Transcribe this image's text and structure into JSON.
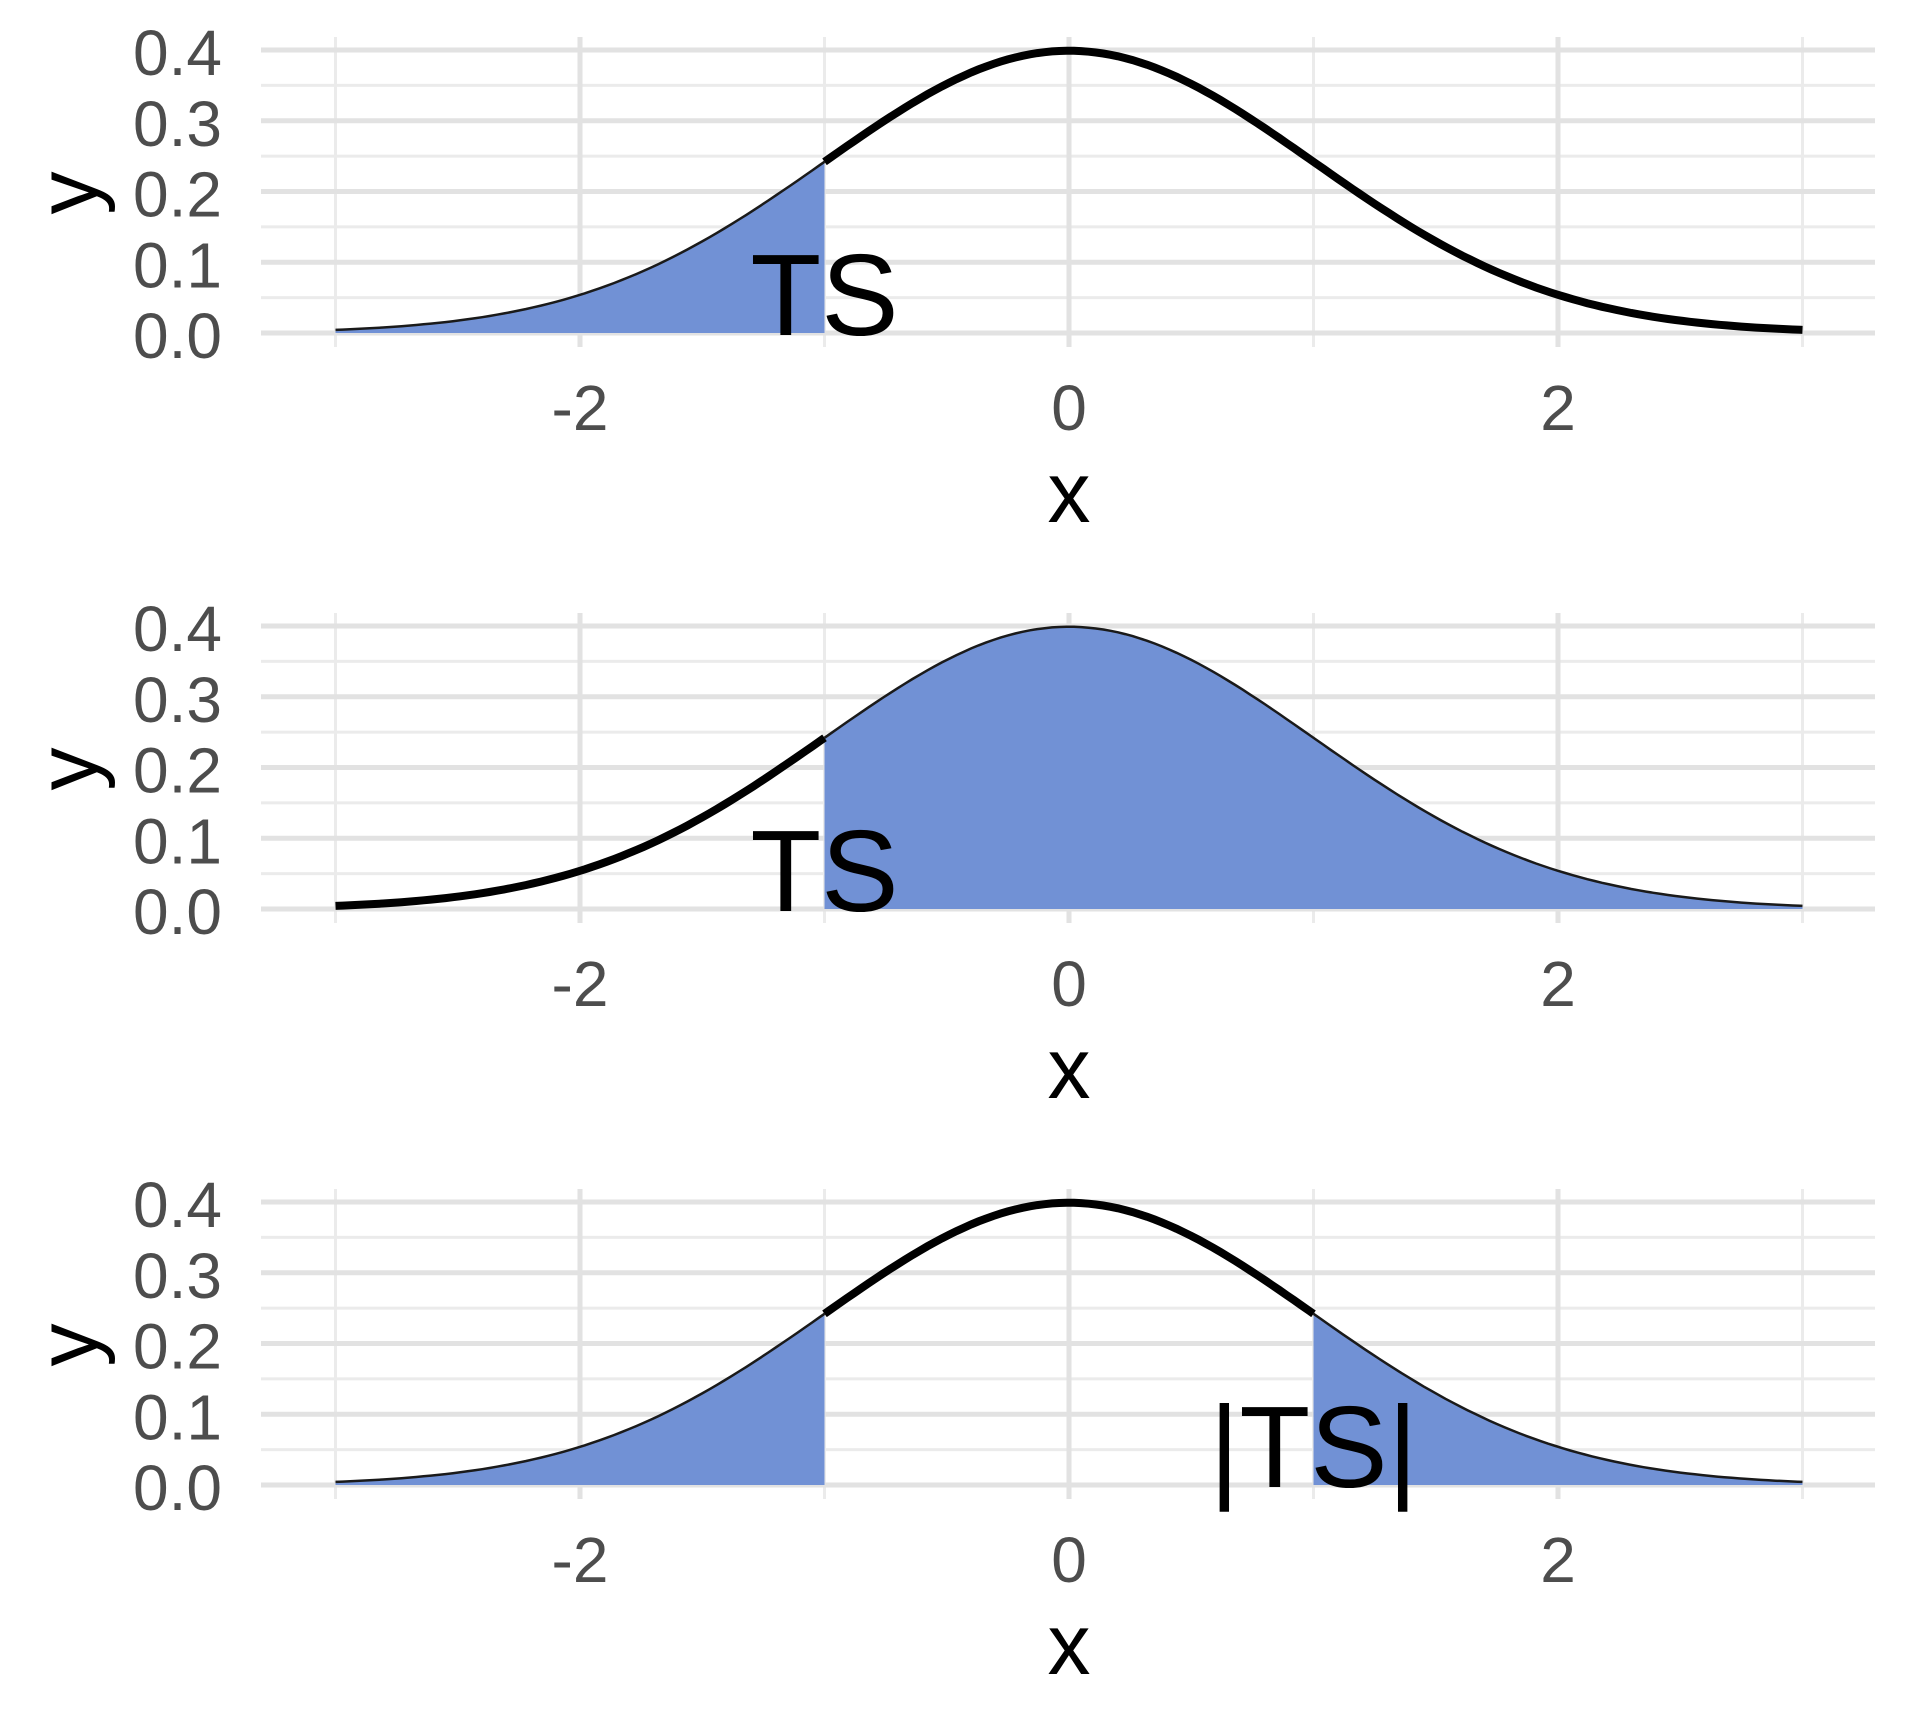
{
  "colors": {
    "background": "#FFFFFF",
    "fill_blue": "#7191D5",
    "curve_black": "#000000",
    "fill_edge": "#1A1A1A",
    "grid_major": "#E2E2E2",
    "grid_minor": "#EBEBEB",
    "tick_text": "#4D4D4D",
    "title_text": "#000000",
    "annotation_text": "#000000"
  },
  "chart_data": [
    {
      "type": "area",
      "panel": "top",
      "title": "",
      "xlabel": "x",
      "ylabel": "y",
      "xlim": [
        -3.3,
        3.3
      ],
      "ylim": [
        -0.02,
        0.42
      ],
      "grid": true,
      "legend": "none",
      "x_tick_values": [
        -2,
        0,
        2
      ],
      "x_tick_labels": [
        "-2",
        "0",
        "2"
      ],
      "y_tick_values": [
        0,
        0.1,
        0.2,
        0.3,
        0.4
      ],
      "y_tick_labels": [
        "0.0",
        "0.1",
        "0.2",
        "0.3",
        "0.4"
      ],
      "x_minor_values": [
        -3,
        -1,
        1,
        3
      ],
      "y_minor_values": [
        0.05,
        0.15,
        0.25,
        0.35
      ],
      "curve": {
        "name": "standard-normal-pdf",
        "mean": 0,
        "sd": 1,
        "x_range": [
          -3,
          3
        ],
        "peak": 0.3989,
        "key_points": [
          [
            -3,
            0.0044
          ],
          [
            -2,
            0.054
          ],
          [
            -1,
            0.242
          ],
          [
            0,
            0.3989
          ],
          [
            1,
            0.242
          ],
          [
            2,
            0.054
          ],
          [
            3,
            0.0044
          ]
        ]
      },
      "shaded_regions": [
        [
          -3,
          -1
        ]
      ],
      "line_segments": [
        [
          -1,
          3
        ]
      ],
      "annotations": [
        {
          "label": "TS",
          "x": -1,
          "y": 0.05
        }
      ]
    },
    {
      "type": "area",
      "panel": "middle",
      "title": "",
      "xlabel": "x",
      "ylabel": "y",
      "xlim": [
        -3.3,
        3.3
      ],
      "ylim": [
        -0.02,
        0.42
      ],
      "grid": true,
      "legend": "none",
      "x_tick_values": [
        -2,
        0,
        2
      ],
      "x_tick_labels": [
        "-2",
        "0",
        "2"
      ],
      "y_tick_values": [
        0,
        0.1,
        0.2,
        0.3,
        0.4
      ],
      "y_tick_labels": [
        "0.0",
        "0.1",
        "0.2",
        "0.3",
        "0.4"
      ],
      "x_minor_values": [
        -3,
        -1,
        1,
        3
      ],
      "y_minor_values": [
        0.05,
        0.15,
        0.25,
        0.35
      ],
      "curve": {
        "name": "standard-normal-pdf",
        "mean": 0,
        "sd": 1,
        "x_range": [
          -3,
          3
        ],
        "peak": 0.3989,
        "key_points": [
          [
            -3,
            0.0044
          ],
          [
            -2,
            0.054
          ],
          [
            -1,
            0.242
          ],
          [
            0,
            0.3989
          ],
          [
            1,
            0.242
          ],
          [
            2,
            0.054
          ],
          [
            3,
            0.0044
          ]
        ]
      },
      "shaded_regions": [
        [
          -1,
          3
        ]
      ],
      "line_segments": [
        [
          -3,
          -1
        ]
      ],
      "annotations": [
        {
          "label": "TS",
          "x": -1,
          "y": 0.05
        }
      ]
    },
    {
      "type": "area",
      "panel": "bottom",
      "title": "",
      "xlabel": "x",
      "ylabel": "y",
      "xlim": [
        -3.3,
        3.3
      ],
      "ylim": [
        -0.02,
        0.42
      ],
      "grid": true,
      "legend": "none",
      "x_tick_values": [
        -2,
        0,
        2
      ],
      "x_tick_labels": [
        "-2",
        "0",
        "2"
      ],
      "y_tick_values": [
        0,
        0.1,
        0.2,
        0.3,
        0.4
      ],
      "y_tick_labels": [
        "0.0",
        "0.1",
        "0.2",
        "0.3",
        "0.4"
      ],
      "x_minor_values": [
        -3,
        -1,
        1,
        3
      ],
      "y_minor_values": [
        0.05,
        0.15,
        0.25,
        0.35
      ],
      "curve": {
        "name": "standard-normal-pdf",
        "mean": 0,
        "sd": 1,
        "x_range": [
          -3,
          3
        ],
        "peak": 0.3989,
        "key_points": [
          [
            -3,
            0.0044
          ],
          [
            -2,
            0.054
          ],
          [
            -1,
            0.242
          ],
          [
            0,
            0.3989
          ],
          [
            1,
            0.242
          ],
          [
            2,
            0.054
          ],
          [
            3,
            0.0044
          ]
        ]
      },
      "shaded_regions": [
        [
          -3,
          -1
        ],
        [
          1,
          3
        ]
      ],
      "line_segments": [
        [
          -1,
          1
        ]
      ],
      "annotations": [
        {
          "label": "|TS|",
          "x": 1,
          "y": 0.05
        }
      ]
    }
  ]
}
